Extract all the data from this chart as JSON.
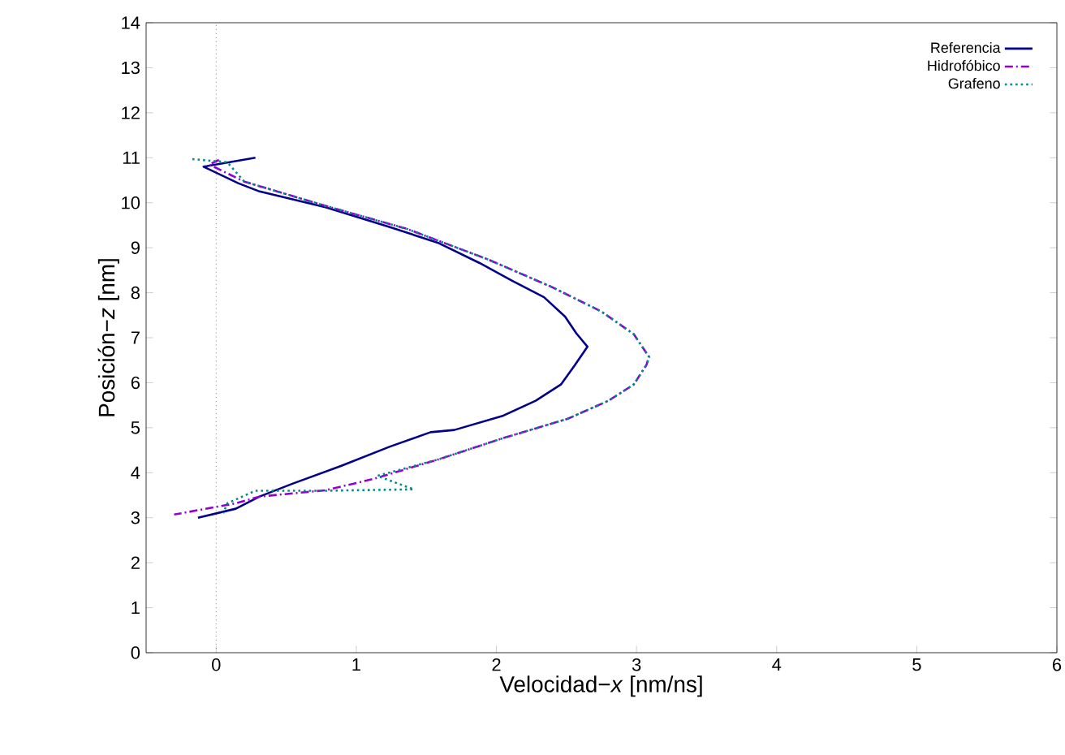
{
  "chart_data": {
    "type": "line",
    "xlabel": "Velocidad−*x* [nm/ns]",
    "ylabel": "Posición−*z* [nm]",
    "xlim": [
      -0.5,
      6
    ],
    "xticks": [
      0,
      1,
      2,
      3,
      4,
      5,
      6
    ],
    "ylim": [
      0,
      14
    ],
    "yticks": [
      0,
      1,
      2,
      3,
      4,
      5,
      6,
      7,
      8,
      9,
      10,
      11,
      12,
      13,
      14
    ],
    "grid": false,
    "legend": "top right",
    "ref_lines": [
      {
        "axis": "x",
        "value": 0,
        "color": "#808080",
        "line_style": "dotted"
      }
    ],
    "series": [
      {
        "name": "Referencia",
        "color": "#00008b",
        "line_style": "solid",
        "x": [
          0.28,
          -0.09,
          0.16,
          0.31,
          0.78,
          1.24,
          1.59,
          1.88,
          2.11,
          2.34,
          2.49,
          2.57,
          2.65,
          2.56,
          2.46,
          2.28,
          2.05,
          1.7,
          1.53,
          1.24,
          0.89,
          0.54,
          0.31,
          0.14,
          -0.13
        ],
        "values": [
          11.0,
          10.8,
          10.43,
          10.25,
          9.9,
          9.46,
          9.1,
          8.66,
          8.27,
          7.9,
          7.47,
          7.1,
          6.8,
          6.39,
          5.96,
          5.6,
          5.27,
          4.95,
          4.9,
          4.58,
          4.15,
          3.75,
          3.47,
          3.2,
          3.0
        ]
      },
      {
        "name": "Hidrofóbico",
        "color": "#9400d3",
        "line_style": "dashed",
        "x": [
          0.02,
          -0.05,
          0.2,
          0.78,
          1.36,
          1.94,
          2.4,
          2.75,
          2.98,
          3.09,
          3.07,
          2.98,
          2.8,
          2.51,
          2.05,
          1.59,
          1.12,
          0.78,
          0.31,
          0.14,
          -0.3
        ],
        "values": [
          10.95,
          10.85,
          10.47,
          9.93,
          9.42,
          8.74,
          8.12,
          7.58,
          7.08,
          6.57,
          6.39,
          5.96,
          5.6,
          5.2,
          4.77,
          4.3,
          3.86,
          3.61,
          3.47,
          3.32,
          3.07
        ]
      },
      {
        "name": "Grafeno",
        "color": "#008b8b",
        "line_style": "dotted",
        "x": [
          -0.17,
          0.08,
          0.2,
          0.78,
          1.36,
          1.94,
          2.4,
          2.75,
          2.98,
          3.09,
          3.07,
          2.98,
          2.8,
          2.51,
          2.05,
          1.59,
          1.15,
          1.41,
          0.78,
          0.28,
          0.08,
          0.05
        ],
        "values": [
          10.97,
          10.9,
          10.47,
          9.93,
          9.42,
          8.74,
          8.12,
          7.58,
          7.08,
          6.57,
          6.39,
          5.96,
          5.6,
          5.2,
          4.77,
          4.3,
          3.93,
          3.63,
          3.6,
          3.6,
          3.32,
          3.1
        ]
      }
    ]
  }
}
